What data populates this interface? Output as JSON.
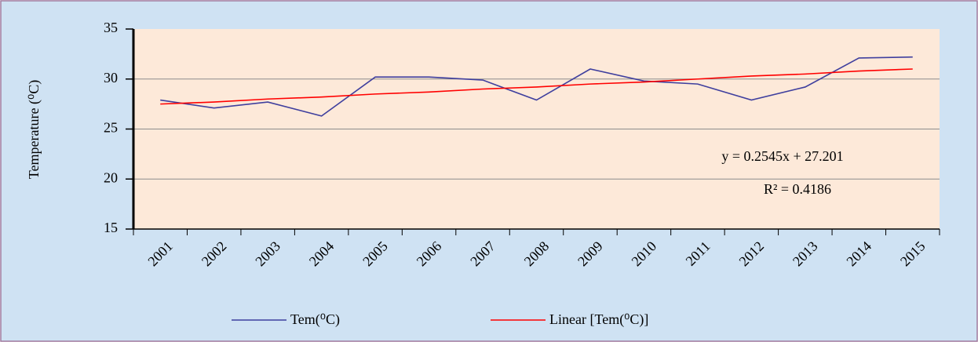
{
  "chart_data": {
    "type": "line",
    "y_label": "Temperature (⁰C)",
    "categories": [
      "2001",
      "2002",
      "2003",
      "2004",
      "2005",
      "2006",
      "2007",
      "2008",
      "2009",
      "2010",
      "2011",
      "2012",
      "2013",
      "2014",
      "2015"
    ],
    "series": [
      {
        "name": "Tem(⁰C)",
        "color": "#3f3f9e",
        "values": [
          27.9,
          27.1,
          27.7,
          26.3,
          30.2,
          30.2,
          29.9,
          27.9,
          31.0,
          29.8,
          29.5,
          27.9,
          29.2,
          32.1,
          32.2
        ]
      },
      {
        "name": "Linear [Tem(⁰C)]",
        "color": "#ff0000",
        "values": [
          27.5,
          27.7,
          28.0,
          28.2,
          28.5,
          28.7,
          29.0,
          29.2,
          29.5,
          29.7,
          30.0,
          30.3,
          30.5,
          30.8,
          31.0
        ]
      }
    ],
    "annotations": [
      "y = 0.2545x + 27.201",
      "R² = 0.4186"
    ],
    "ylim": [
      15,
      35
    ],
    "yticks": [
      15,
      20,
      25,
      30,
      35
    ],
    "grid": true,
    "legend": "bottom"
  }
}
